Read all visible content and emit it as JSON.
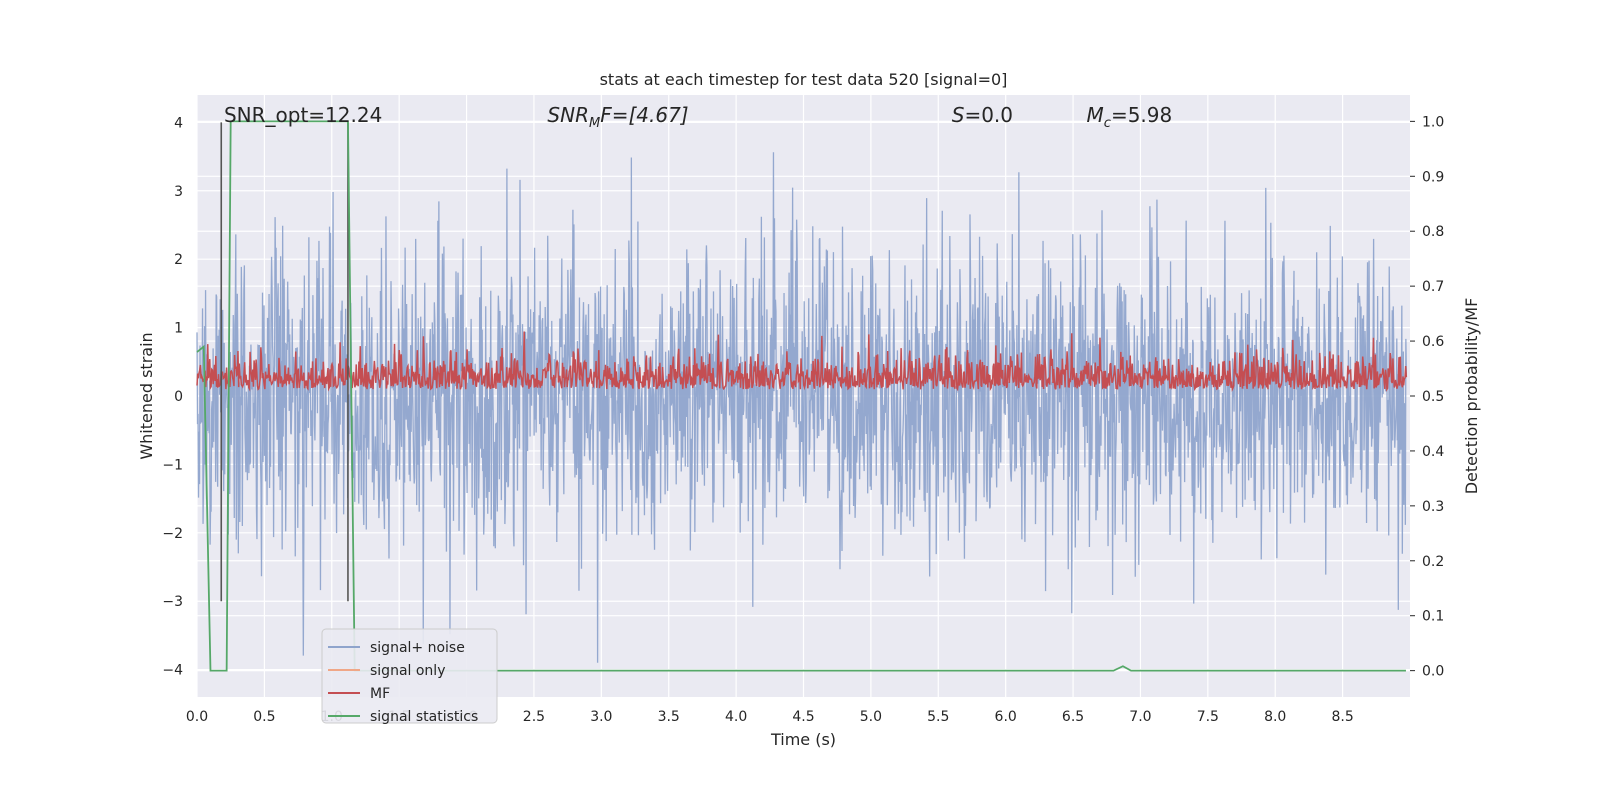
{
  "chart_data": {
    "type": "line",
    "title": "stats at each timestep for test data 520 [signal=0]",
    "xlabel": "Time (s)",
    "ylabel_left": "Whitened strain",
    "ylabel_right": "Detection probability/MF",
    "xlim": [
      0.0,
      9.0
    ],
    "ylim_left": [
      -4.4,
      4.4
    ],
    "ylim_right": [
      -0.048,
      1.048
    ],
    "xticks": [
      "0.0",
      "0.5",
      "1.0",
      "1.5",
      "2.0",
      "2.5",
      "3.0",
      "3.5",
      "4.0",
      "4.5",
      "5.0",
      "5.5",
      "6.0",
      "6.5",
      "7.0",
      "7.5",
      "8.0",
      "8.5"
    ],
    "yticks_left": [
      "4",
      "3",
      "2",
      "1",
      "0",
      "−1",
      "−2",
      "−3",
      "−4"
    ],
    "yticks_right": [
      "1.0",
      "0.9",
      "0.8",
      "0.7",
      "0.6",
      "0.5",
      "0.4",
      "0.3",
      "0.2",
      "0.1",
      "0.0"
    ],
    "grid": true,
    "legend_position": "lower-left",
    "annotations": {
      "snr_opt": "SNR_opt=12.24",
      "snr_mf_main": "SNR",
      "snr_mf_sub": "M",
      "snr_mf_tail": "F=[4.67]",
      "s_main": "S",
      "s_tail": "=0.0",
      "mc_main": "M",
      "mc_sub": "c",
      "mc_tail": "=5.98"
    },
    "series": [
      {
        "name": "signal+ noise",
        "color": "#8fa4cc",
        "axis": "left",
        "description_stats": {
          "approx_range": [
            -3.9,
            4.0
          ],
          "typical_abs_peak": 2.0
        }
      },
      {
        "name": "signal only",
        "color": "#f0a787",
        "axis": "left",
        "values": []
      },
      {
        "name": "MF",
        "color": "#c44e52",
        "axis": "right",
        "description_stats": {
          "baseline": 0.5,
          "approx_range": [
            0.5,
            0.63
          ]
        }
      },
      {
        "name": "signal statistics",
        "color": "#55a868",
        "axis": "right",
        "x": [
          0.0,
          0.05,
          0.1,
          0.12,
          0.15,
          0.18,
          0.22,
          0.25,
          1.12,
          1.17,
          6.8,
          6.87,
          6.93,
          8.97
        ],
        "y": [
          0.58,
          0.59,
          0.0,
          0.0,
          0.0,
          0.0,
          0.0,
          1.0,
          1.0,
          0.0,
          0.0,
          0.008,
          0.0,
          0.0
        ]
      }
    ],
    "vertical_lines": {
      "color": "#555555",
      "x": [
        0.18,
        1.12
      ]
    }
  },
  "colors": {
    "axes_bg": "#eaeaf2",
    "grid": "#ffffff"
  }
}
